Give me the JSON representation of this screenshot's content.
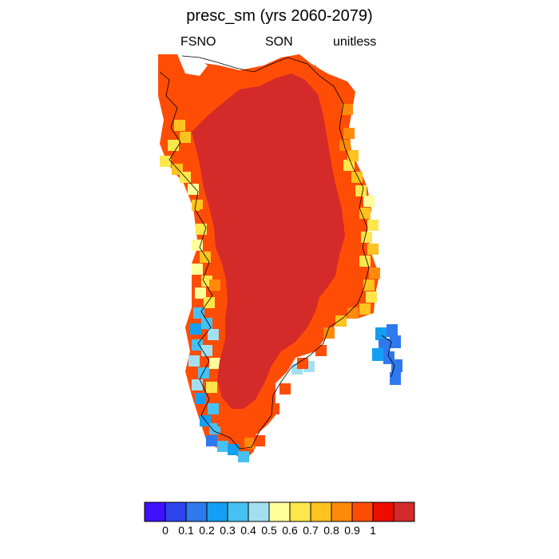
{
  "figure": {
    "title": "presc_sm (yrs 2060-2079)",
    "left_label": "FSNO",
    "center_label": "SON",
    "right_label": "unitless"
  },
  "colorbar": {
    "bins": [
      "#4010ff",
      "#2c45ee",
      "#2f79ef",
      "#139ff2",
      "#47c1f2",
      "#a4dff0",
      "#ffff9b",
      "#ffe64c",
      "#ffc21e",
      "#ff8a0a",
      "#ff4d06",
      "#ee0b00",
      "#d42a2a"
    ],
    "tick_labels": [
      "0",
      "0.1",
      "0.2",
      "0.3",
      "0.4",
      "0.5",
      "0.6",
      "0.7",
      "0.8",
      "0.9",
      "1"
    ]
  },
  "map_data": {
    "type": "filled-grid-map",
    "region": "Greenland",
    "variable": "presc_sm",
    "interior_value": 1.0,
    "margin_values": {
      "northwest": [
        0.9,
        1.0,
        0.8,
        0.7,
        0.6
      ],
      "east": [
        0.9,
        0.8,
        0.7,
        0.6,
        0.5
      ],
      "southwest": [
        0.5,
        0.4,
        0.3,
        0.2,
        0.1
      ],
      "island_east": [
        0.1,
        0.2
      ]
    }
  }
}
